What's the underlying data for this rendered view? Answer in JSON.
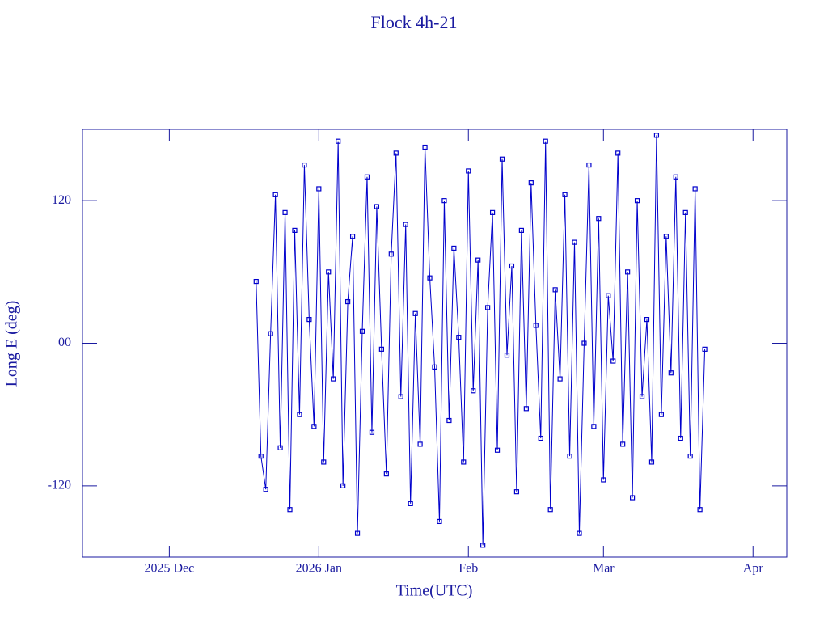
{
  "chart_data": {
    "type": "line",
    "title": "Flock 4h-21",
    "x_label": "Time(UTC)",
    "y_label": "Long E (deg)",
    "color": "#0000cc",
    "markers": true,
    "x": [
      18,
      19,
      20,
      21,
      22,
      23,
      24,
      25,
      26,
      27,
      28,
      29,
      30,
      31,
      32,
      33,
      34,
      35,
      36,
      37,
      38,
      39,
      40,
      41,
      42,
      43,
      44,
      45,
      46,
      47,
      48,
      49,
      50,
      51,
      52,
      53,
      54,
      55,
      56,
      57,
      58,
      59,
      60,
      61,
      62,
      63,
      64,
      65,
      66,
      67,
      68,
      69,
      70,
      71,
      72,
      73,
      74,
      75,
      76,
      77,
      78,
      79,
      80,
      81,
      82,
      83,
      84,
      85,
      86,
      87,
      88,
      89,
      90,
      91,
      92,
      93,
      94,
      95,
      96,
      97,
      98,
      99,
      100,
      101,
      102,
      103,
      104,
      105,
      106,
      107,
      108,
      109,
      110,
      111
    ],
    "values": [
      52,
      -95,
      -123,
      8,
      125,
      -88,
      110,
      -140,
      95,
      -60,
      150,
      20,
      -70,
      130,
      -100,
      60,
      -30,
      170,
      -120,
      35,
      90,
      -160,
      10,
      140,
      -75,
      115,
      -5,
      -110,
      75,
      160,
      -45,
      100,
      -135,
      25,
      -85,
      165,
      55,
      -20,
      -150,
      120,
      -65,
      80,
      5,
      -100,
      145,
      -40,
      70,
      -170,
      30,
      110,
      -90,
      155,
      -10,
      65,
      -125,
      95,
      -55,
      135,
      15,
      -80,
      170,
      -140,
      45,
      -30,
      125,
      -95,
      85,
      -160,
      0,
      150,
      -70,
      105,
      -115,
      40,
      -15,
      160,
      -85,
      60,
      -130,
      120,
      -45,
      20,
      -100,
      175,
      -60,
      90,
      -25,
      140,
      -80,
      110,
      -95,
      130,
      -140,
      -5
    ],
    "xlim": [
      -18,
      128
    ],
    "xticks": [
      {
        "value": 0,
        "label": "2025 Dec"
      },
      {
        "value": 31,
        "label": "2026 Jan"
      },
      {
        "value": 62,
        "label": "Feb"
      },
      {
        "value": 90,
        "label": "Mar"
      },
      {
        "value": 121,
        "label": "Apr"
      }
    ],
    "ylim": [
      -180,
      180
    ],
    "yticks": [
      -120,
      {
        "value": 0,
        "label": "00"
      },
      120
    ]
  }
}
